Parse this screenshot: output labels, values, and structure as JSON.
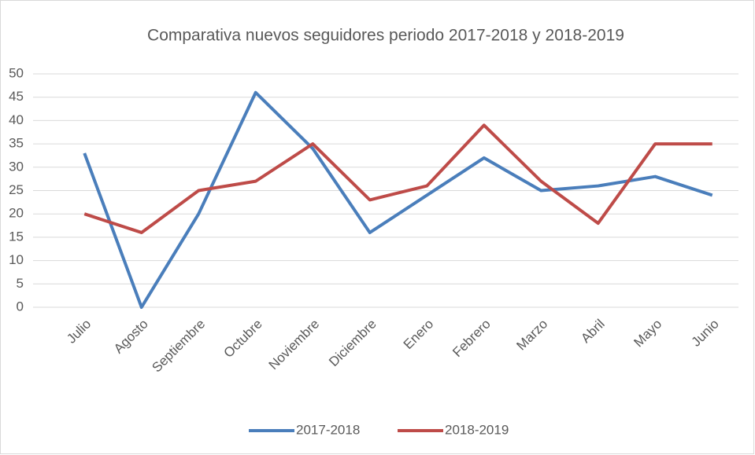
{
  "chart_data": {
    "type": "line",
    "title": "Comparativa nuevos seguidores periodo 2017-2018 y 2018-2019",
    "categories": [
      "Julio",
      "Agosto",
      "Septiembre",
      "Octubre",
      "Noviembre",
      "Diciembre",
      "Enero",
      "Febrero",
      "Marzo",
      "Abril",
      "Mayo",
      "Junio"
    ],
    "series": [
      {
        "name": "2017-2018",
        "color": "#4a7ebb",
        "values": [
          33,
          0,
          20,
          46,
          34,
          16,
          24,
          32,
          25,
          26,
          28,
          24
        ]
      },
      {
        "name": "2018-2019",
        "color": "#be4b48",
        "values": [
          20,
          16,
          25,
          27,
          35,
          23,
          26,
          39,
          27,
          18,
          35,
          35
        ]
      }
    ],
    "ylim": [
      0,
      50
    ],
    "yticks": [
      0,
      5,
      10,
      15,
      20,
      25,
      30,
      35,
      40,
      45,
      50
    ],
    "grid": true,
    "legend": "bottom"
  }
}
